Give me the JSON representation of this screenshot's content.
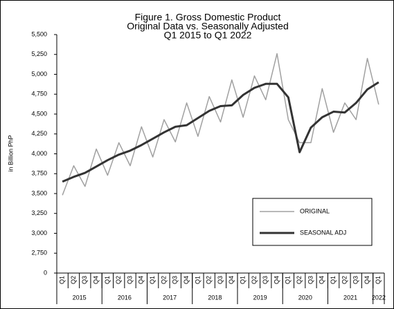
{
  "chart_data": {
    "type": "line",
    "title_lines": [
      "Figure 1. Gross Domestic Product",
      "Original Data vs. Seasonally Adjusted",
      "Q1 2015 to Q1 2022"
    ],
    "y_label": "in Billion PhP",
    "categories": [
      "Q1",
      "Q2",
      "Q3",
      "Q4",
      "Q1",
      "Q2",
      "Q3",
      "Q4",
      "Q1",
      "Q2",
      "Q3",
      "Q4",
      "Q1",
      "Q2",
      "Q3",
      "Q4",
      "Q1",
      "Q2",
      "Q3",
      "Q4",
      "Q1",
      "Q2",
      "Q3",
      "Q4",
      "Q1",
      "Q2",
      "Q3",
      "Q4",
      "Q1"
    ],
    "year_groups": [
      {
        "label": "2015",
        "span": 4
      },
      {
        "label": "2016",
        "span": 4
      },
      {
        "label": "2017",
        "span": 4
      },
      {
        "label": "2018",
        "span": 4
      },
      {
        "label": "2019",
        "span": 4
      },
      {
        "label": "2020",
        "span": 4
      },
      {
        "label": "2021",
        "span": 4
      },
      {
        "label": "2022",
        "span": 1
      }
    ],
    "series": [
      {
        "name": "ORIGINAL",
        "color": "#a0a0a0",
        "width": 1.5,
        "values": [
          3480,
          3850,
          3590,
          4060,
          3730,
          4140,
          3850,
          4340,
          3960,
          4430,
          4150,
          4640,
          4220,
          4720,
          4400,
          4930,
          4460,
          4980,
          4680,
          5260,
          4430,
          4140,
          4140,
          4820,
          4270,
          4640,
          4430,
          5200,
          4620
        ]
      },
      {
        "name": "SEASONAL ADJ",
        "color": "#333333",
        "width": 3,
        "values": [
          3650,
          3710,
          3760,
          3840,
          3920,
          3990,
          4040,
          4110,
          4190,
          4270,
          4340,
          4360,
          4450,
          4540,
          4600,
          4610,
          4740,
          4830,
          4880,
          4880,
          4710,
          4020,
          4330,
          4460,
          4530,
          4520,
          4640,
          4810,
          4900
        ]
      }
    ],
    "ylim": [
      2500,
      5500
    ],
    "y_axis_break": true,
    "yticks": [
      0,
      {
        "value": 2750,
        "label": "2,750"
      },
      {
        "value": 3000,
        "label": "3,000"
      },
      {
        "value": 3250,
        "label": "3,250"
      },
      {
        "value": 3500,
        "label": "3,500"
      },
      {
        "value": 3750,
        "label": "3,750"
      },
      {
        "value": 4000,
        "label": "4,000"
      },
      {
        "value": 4250,
        "label": "4,250"
      },
      {
        "value": 4500,
        "label": "4,500"
      },
      {
        "value": 4750,
        "label": "4,750"
      },
      {
        "value": 5000,
        "label": "5,000"
      },
      {
        "value": 5250,
        "label": "5,250"
      },
      {
        "value": 5500,
        "label": "5,500"
      }
    ],
    "legend": "bottom-right",
    "grid": false
  }
}
